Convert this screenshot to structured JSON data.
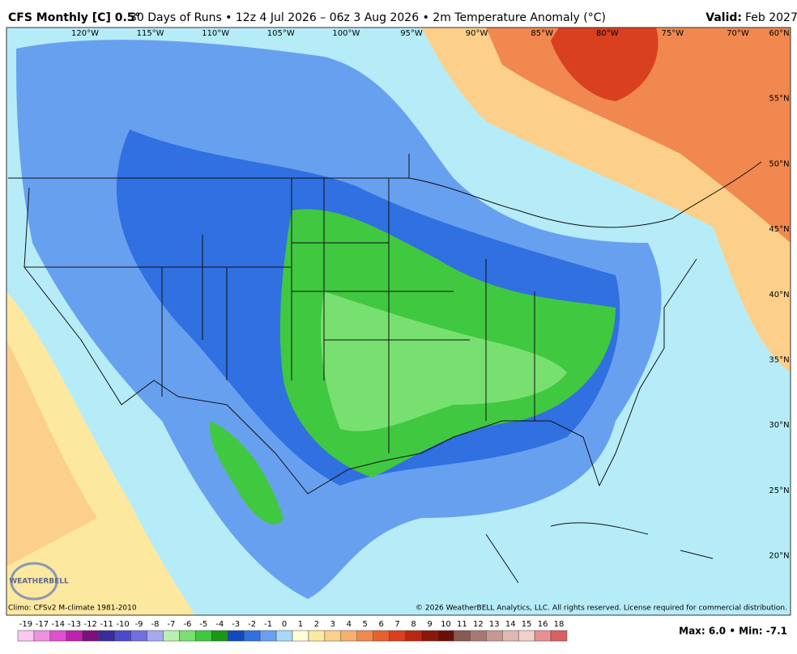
{
  "header": {
    "title_bold": "CFS Monthly [C] 0.5°",
    "title_rest": "30 Days of Runs • 12z 4 Jul 2026 – 06z 3 Aug 2026 • 2m Temperature Anomaly (°C)",
    "valid_label": "Valid:",
    "valid_value": "Feb 2027"
  },
  "map": {
    "longitudes": [
      "120°W",
      "115°W",
      "110°W",
      "105°W",
      "100°W",
      "95°W",
      "90°W",
      "85°W",
      "80°W",
      "75°W",
      "70°W"
    ],
    "latitudes": [
      "60°N",
      "55°N",
      "50°N",
      "45°N",
      "40°N",
      "35°N",
      "30°N",
      "25°N",
      "20°N"
    ],
    "logo": "WEATHERBELL"
  },
  "footer": {
    "climo": "Climo: CFSv2 M-climate 1981-2010",
    "copyright": "© 2026 WeatherBELL Analytics, LLC. All rights reserved. License required for commercial distribution.",
    "stats": "Max: 6.0 • Min: -7.1"
  },
  "colorbar": {
    "labels": [
      -19,
      -17,
      -14,
      -13,
      -12,
      -11,
      -10,
      -9,
      -8,
      -7,
      -6,
      -5,
      -4,
      -3,
      -2,
      -1,
      0,
      1,
      2,
      3,
      4,
      5,
      6,
      7,
      8,
      9,
      10,
      11,
      12,
      13,
      14,
      15,
      16,
      18
    ],
    "colors": [
      "#f9c8f0",
      "#f090e0",
      "#e050d0",
      "#c020b0",
      "#7a1080",
      "#3a2a9a",
      "#4a4ad0",
      "#7070e0",
      "#a8a8f0",
      "#b8f0b0",
      "#78e070",
      "#40c840",
      "#1a961a",
      "#1448c0",
      "#3070e0",
      "#68a0f0",
      "#a8d8f8",
      "#fffcd8",
      "#fde8a0",
      "#fcd08a",
      "#f8b070",
      "#f08850",
      "#e86030",
      "#d84020",
      "#b82810",
      "#8a180a",
      "#6a1008",
      "#8a5a50",
      "#a87870",
      "#c89890",
      "#e0b8b0",
      "#f0d0c8",
      "#e89090",
      "#d86060"
    ]
  }
}
